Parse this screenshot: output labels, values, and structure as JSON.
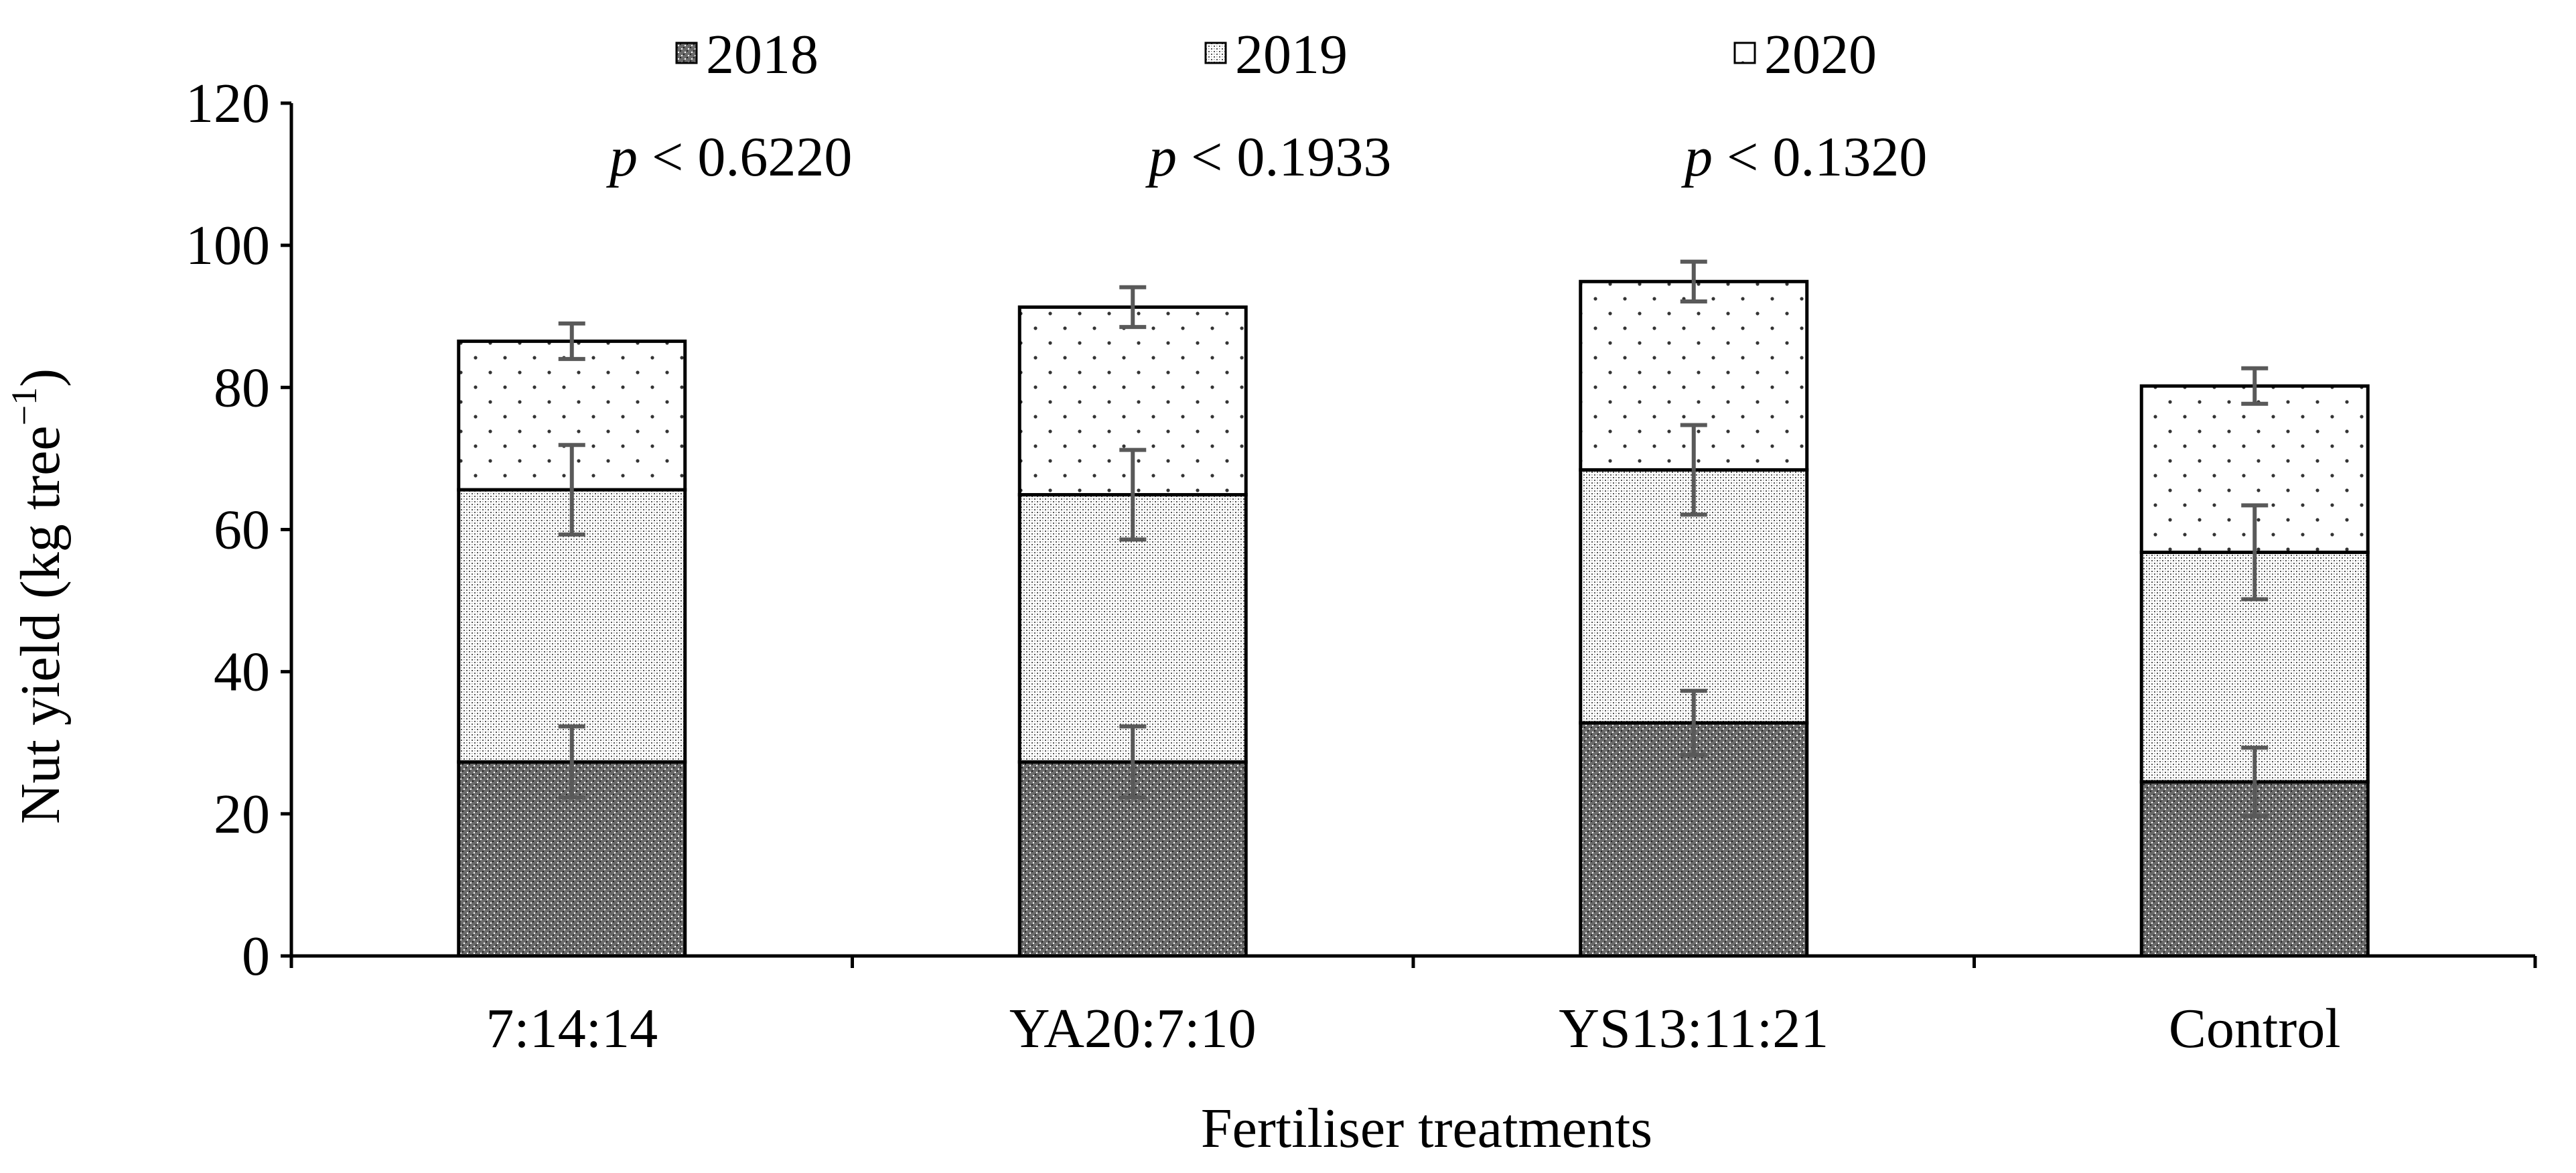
{
  "chart_data": {
    "type": "bar",
    "stacked": true,
    "title": "",
    "xlabel": "Fertiliser treatments",
    "ylabel": "Nut yield (kg tree",
    "ylabel_sup": "−1",
    "ylabel_close": ")",
    "ylim": [
      0,
      120
    ],
    "yticks": [
      0,
      20,
      40,
      60,
      80,
      100,
      120
    ],
    "categories": [
      "7:14:14",
      "YA20:7:10",
      "YS13:11:21",
      "Control"
    ],
    "series": [
      {
        "name": "2018",
        "values": [
          27.3,
          27.3,
          32.8,
          24.5
        ],
        "errors": [
          5.0,
          5.0,
          4.5,
          4.8
        ],
        "pattern": "dark-stipple"
      },
      {
        "name": "2019",
        "values": [
          38.3,
          37.6,
          35.6,
          32.3
        ],
        "errors": [
          6.3,
          6.3,
          6.3,
          6.6
        ],
        "pattern": "medium-stipple"
      },
      {
        "name": "2020",
        "values": [
          20.9,
          26.4,
          26.5,
          23.4
        ],
        "errors": [
          2.5,
          2.8,
          2.8,
          2.5
        ],
        "pattern": "sparse-dots"
      }
    ],
    "legend": {
      "placement": "top",
      "entries": [
        "2018",
        "2019",
        "2020"
      ]
    },
    "annotations": [
      {
        "prefix": "p",
        "text": " < 0.6220"
      },
      {
        "prefix": "p",
        "text": " < 0.1933"
      },
      {
        "prefix": "p",
        "text": " < 0.1320"
      }
    ],
    "colors": {
      "outline": "#000000",
      "error_bar": "#595959",
      "background": "#ffffff"
    }
  }
}
